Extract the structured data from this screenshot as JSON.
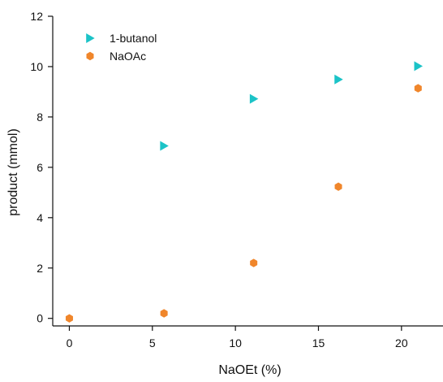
{
  "chart_data": {
    "type": "scatter",
    "title": "",
    "xlabel": "NaOEt (%)",
    "ylabel": "product (mmol)",
    "xlim": [
      -1,
      22.5
    ],
    "ylim": [
      -0.3,
      12
    ],
    "xticks": [
      "0",
      "5",
      "10",
      "15",
      "20"
    ],
    "yticks": [
      "0",
      "2",
      "4",
      "6",
      "8",
      "10",
      "12"
    ],
    "grid": false,
    "legend": "top-left",
    "series": [
      {
        "name": "1-butanol",
        "marker": "triangle-right",
        "color": "#1BC3C7",
        "x": [
          5.7,
          11.1,
          16.2,
          21.0
        ],
        "y": [
          6.85,
          8.72,
          9.49,
          10.02
        ]
      },
      {
        "name": "NaOAc",
        "marker": "hexagon",
        "color": "#F0862B",
        "x": [
          0,
          5.7,
          11.1,
          16.2,
          21.0
        ],
        "y": [
          0.0,
          0.2,
          2.2,
          5.23,
          9.14
        ]
      }
    ]
  }
}
